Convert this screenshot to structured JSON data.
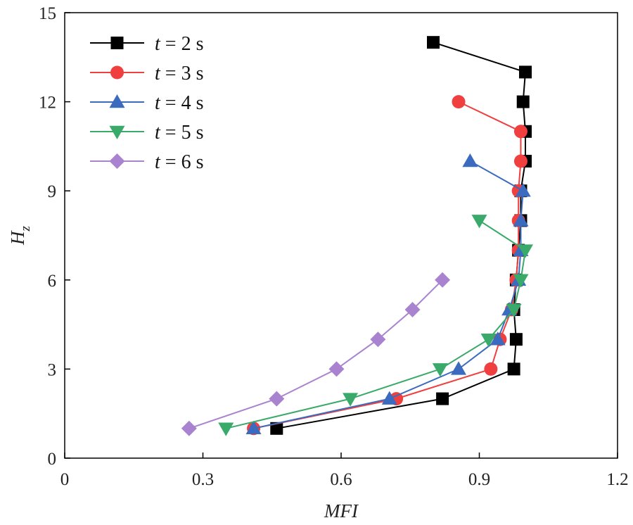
{
  "chart_data": {
    "type": "line",
    "title": "",
    "xlabel": "MFI",
    "ylabel_main": "H",
    "ylabel_sub": "z",
    "xlim": [
      0,
      1.2
    ],
    "ylim": [
      0,
      15
    ],
    "xticks": [
      0,
      0.3,
      0.6,
      0.9,
      1.2
    ],
    "xtick_labels": [
      "0",
      "0.3",
      "0.6",
      "0.9",
      "1.2"
    ],
    "yticks": [
      0,
      3,
      6,
      9,
      12,
      15
    ],
    "ytick_labels": [
      "0",
      "3",
      "6",
      "9",
      "12",
      "15"
    ],
    "grid": false,
    "legend_position": "top-left",
    "series": [
      {
        "name": "t = 2 s",
        "legend_var": "t",
        "legend_rest": " = 2 s",
        "color": "#000000",
        "marker": "square",
        "points": [
          [
            0.46,
            1
          ],
          [
            0.82,
            2
          ],
          [
            0.975,
            3
          ],
          [
            0.98,
            4
          ],
          [
            0.975,
            5
          ],
          [
            0.98,
            6
          ],
          [
            0.985,
            7
          ],
          [
            0.99,
            8
          ],
          [
            0.99,
            9
          ],
          [
            1.0,
            10
          ],
          [
            1.0,
            11
          ],
          [
            0.995,
            12
          ],
          [
            1.0,
            13
          ],
          [
            0.8,
            14
          ]
        ]
      },
      {
        "name": "t = 3 s",
        "legend_var": "t",
        "legend_rest": " = 3 s",
        "color": "#ef3f3f",
        "marker": "circle",
        "points": [
          [
            0.41,
            1
          ],
          [
            0.72,
            2
          ],
          [
            0.925,
            3
          ],
          [
            0.945,
            4
          ],
          [
            0.97,
            5
          ],
          [
            0.98,
            6
          ],
          [
            0.985,
            7
          ],
          [
            0.985,
            8
          ],
          [
            0.985,
            9
          ],
          [
            0.99,
            10
          ],
          [
            0.99,
            11
          ],
          [
            0.855,
            12
          ]
        ]
      },
      {
        "name": "t = 4 s",
        "legend_var": "t",
        "legend_rest": " = 4 s",
        "color": "#3a6bbf",
        "marker": "triangle-up",
        "points": [
          [
            0.41,
            1
          ],
          [
            0.705,
            2
          ],
          [
            0.855,
            3
          ],
          [
            0.94,
            4
          ],
          [
            0.965,
            5
          ],
          [
            0.985,
            6
          ],
          [
            0.99,
            7
          ],
          [
            0.99,
            8
          ],
          [
            0.995,
            9
          ],
          [
            0.88,
            10
          ]
        ]
      },
      {
        "name": "t = 5 s",
        "legend_var": "t",
        "legend_rest": " = 5 s",
        "color": "#3aaa6a",
        "marker": "triangle-down",
        "points": [
          [
            0.35,
            1
          ],
          [
            0.62,
            2
          ],
          [
            0.815,
            3
          ],
          [
            0.92,
            4
          ],
          [
            0.975,
            5
          ],
          [
            0.99,
            6
          ],
          [
            1.0,
            7
          ],
          [
            0.9,
            8
          ]
        ]
      },
      {
        "name": "t = 6 s",
        "legend_var": "t",
        "legend_rest": " = 6 s",
        "color": "#a983cf",
        "marker": "diamond",
        "points": [
          [
            0.27,
            1
          ],
          [
            0.46,
            2
          ],
          [
            0.59,
            3
          ],
          [
            0.68,
            4
          ],
          [
            0.755,
            5
          ],
          [
            0.82,
            6
          ]
        ]
      }
    ]
  }
}
